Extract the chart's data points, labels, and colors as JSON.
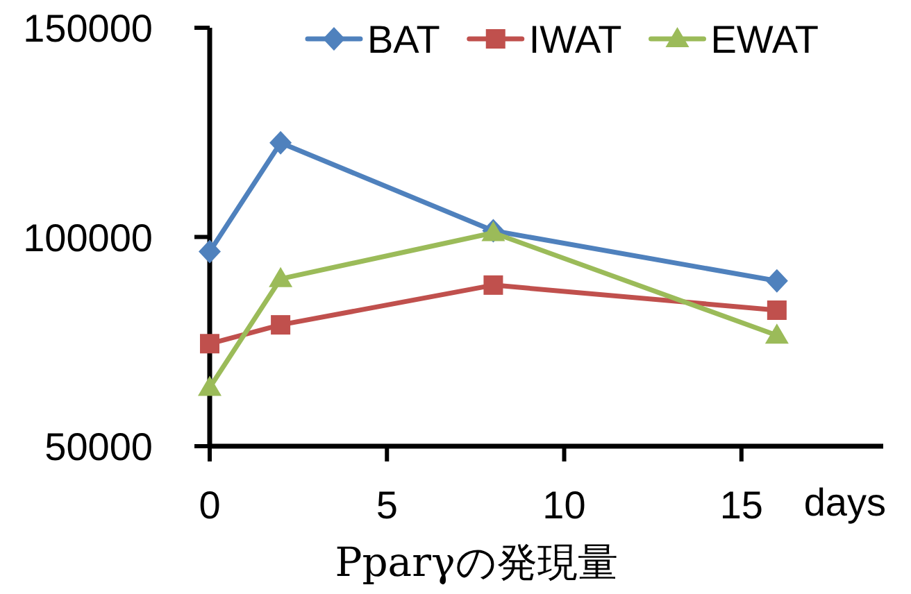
{
  "chart_data": {
    "type": "line",
    "xlabel": "days",
    "annotations": [
      "Pparγの発現量"
    ],
    "x": [
      0,
      2,
      8,
      16
    ],
    "xlim": [
      0,
      19
    ],
    "xticks": [
      0,
      5,
      10,
      15
    ],
    "ylim": [
      50000,
      150000
    ],
    "yticks": [
      50000,
      100000,
      150000
    ],
    "legend": "top",
    "line_style": "solid",
    "series": [
      {
        "name": "BAT",
        "color": "#4f81bd",
        "marker": "diamond",
        "values": [
          96500,
          122500,
          101500,
          89500
        ]
      },
      {
        "name": "IWAT",
        "color": "#c0504d",
        "marker": "square",
        "values": [
          74500,
          79000,
          88500,
          82500
        ]
      },
      {
        "name": "EWAT",
        "color": "#9bbb59",
        "marker": "triangle",
        "values": [
          64000,
          90000,
          101000,
          76500
        ]
      }
    ]
  }
}
